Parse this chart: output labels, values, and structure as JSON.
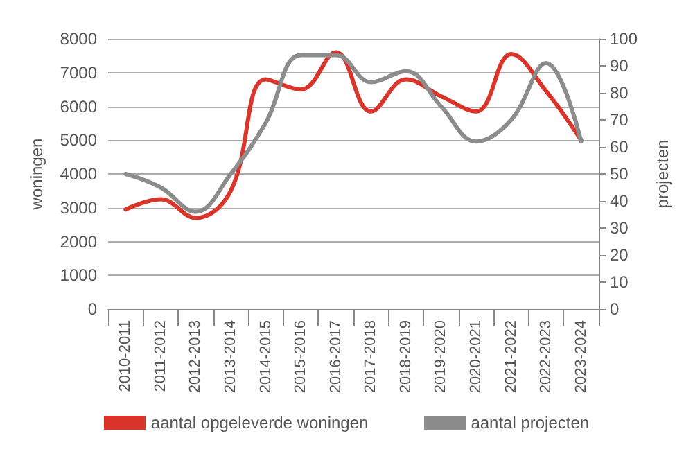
{
  "chart_data": {
    "type": "line",
    "ylabel": "woningen",
    "y2label": "projecten",
    "categories": [
      "2010-2011",
      "2011-2012",
      "2012-2013",
      "2013-2014",
      "2014-2015",
      "2015-2016",
      "2016-2017",
      "2017-2018",
      "2018-2019",
      "2019-2020",
      "2020-2021",
      "2021-2022",
      "2022-2023",
      "2023-2024"
    ],
    "series": [
      {
        "name": "aantal opgeleverde woningen",
        "color": "#d9352a",
        "values": [
          2950,
          3250,
          2700,
          3500,
          6800,
          6500,
          7600,
          5850,
          6800,
          6300,
          5850,
          7550,
          6450,
          5000
        ]
      },
      {
        "name": "aantal projecten",
        "color": "#8c8c8c",
        "axis": "y2",
        "values": [
          50,
          45,
          36,
          50,
          69,
          94,
          94,
          84,
          88,
          75,
          62,
          70,
          91,
          62
        ]
      }
    ],
    "ylim": [
      0,
      8000
    ],
    "yticks": [
      0,
      1000,
      2000,
      3000,
      4000,
      5000,
      6000,
      7000,
      8000
    ],
    "y2lim": [
      0,
      100
    ],
    "y2ticks": [
      0,
      10,
      20,
      30,
      40,
      50,
      60,
      70,
      80,
      90,
      100
    ],
    "grid": "y",
    "legend": "bottom",
    "marker": "none",
    "line_style": "solid"
  }
}
